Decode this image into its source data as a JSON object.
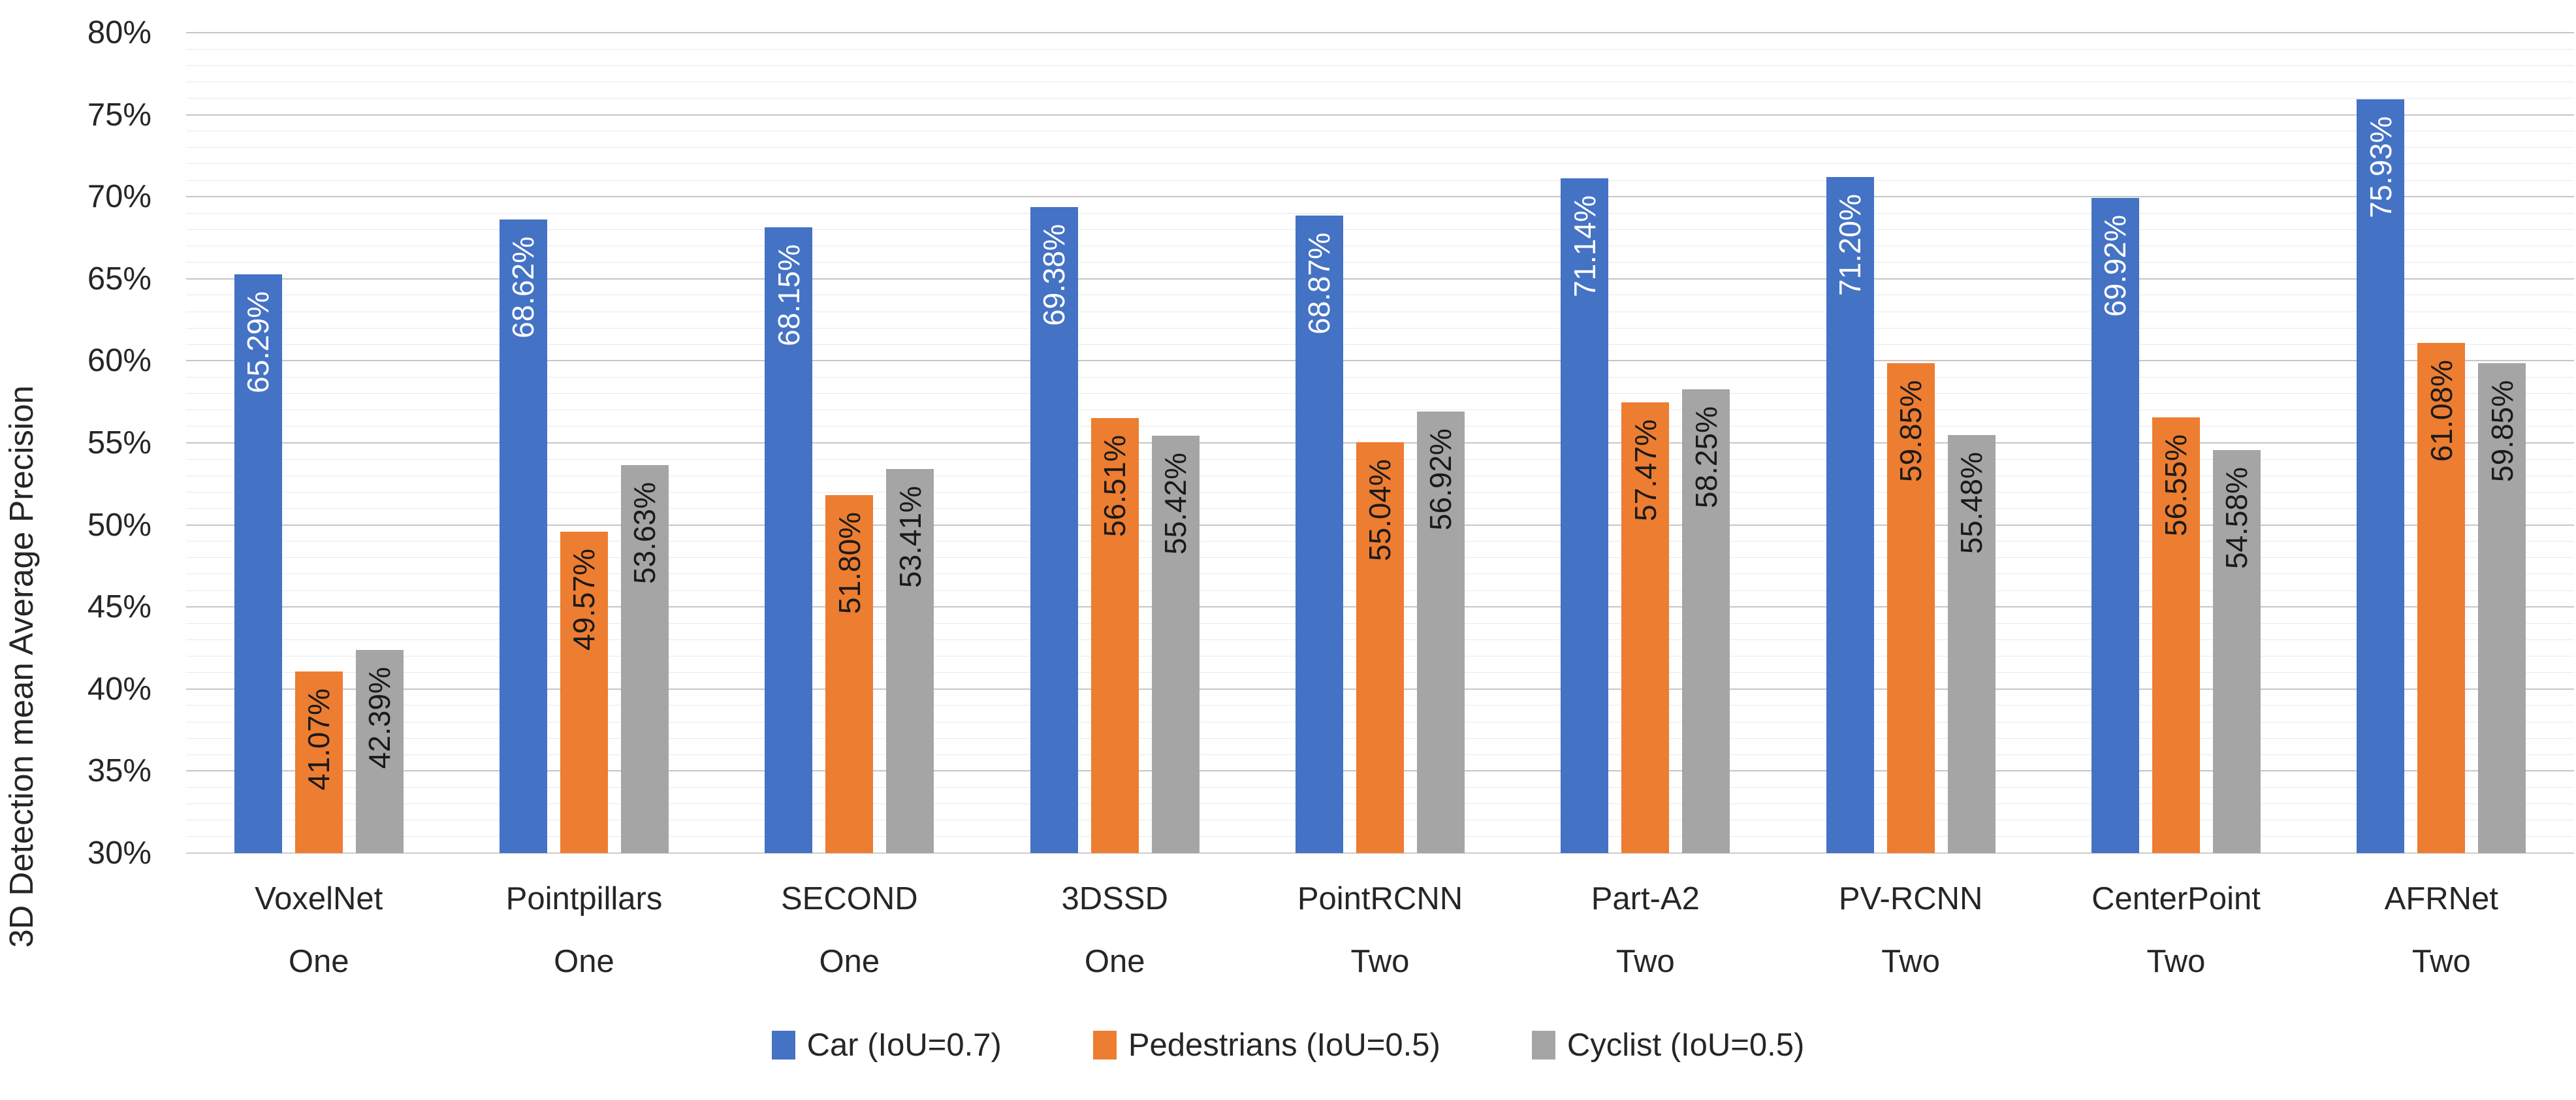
{
  "page": {
    "background": "#FFFFFF"
  },
  "chart_data": {
    "type": "bar",
    "title": "",
    "ylabel": "3D Detection mean Average Precision",
    "xlabel": "",
    "grid": true,
    "legend_position": "bottom",
    "y_axis": {
      "min": 30,
      "max": 80,
      "major_step": 5,
      "minor_step": 1,
      "suffix": "%"
    },
    "y_tick_labels": [
      "80%",
      "75%",
      "70%",
      "65%",
      "60%",
      "55%",
      "50%",
      "45%",
      "40%",
      "35%",
      "30%"
    ],
    "categories": [
      {
        "line1": "VoxelNet",
        "line2": "One"
      },
      {
        "line1": "Pointpillars",
        "line2": "One"
      },
      {
        "line1": "SECOND",
        "line2": "One"
      },
      {
        "line1": "3DSSD",
        "line2": "One"
      },
      {
        "line1": "PointRCNN",
        "line2": "Two"
      },
      {
        "line1": "Part-A2",
        "line2": "Two"
      },
      {
        "line1": "PV-RCNN",
        "line2": "Two"
      },
      {
        "line1": "CenterPoint",
        "line2": "Two"
      },
      {
        "line1": "AFRNet",
        "line2": "Two"
      }
    ],
    "series": [
      {
        "name": "Car (IoU=0.7)",
        "color": "#4472C4",
        "label_color": "#FFFFFF",
        "values": [
          65.29,
          68.62,
          68.15,
          69.38,
          68.87,
          71.14,
          71.2,
          69.92,
          75.93
        ],
        "labels": [
          "65.29%",
          "68.62%",
          "68.15%",
          "69.38%",
          "68.87%",
          "71.14%",
          "71.20%",
          "69.92%",
          "75.93%"
        ]
      },
      {
        "name": "Pedestrians (IoU=0.5)",
        "color": "#ED7D31",
        "label_color": "#1A1A1A",
        "values": [
          41.07,
          49.57,
          51.8,
          56.51,
          55.04,
          57.47,
          59.85,
          56.55,
          61.08
        ],
        "labels": [
          "41.07%",
          "49.57%",
          "51.80%",
          "56.51%",
          "55.04%",
          "57.47%",
          "59.85%",
          "56.55%",
          "61.08%"
        ]
      },
      {
        "name": "Cyclist (IoU=0.5)",
        "color": "#A5A5A5",
        "label_color": "#1A1A1A",
        "values": [
          42.39,
          53.63,
          53.41,
          55.42,
          56.92,
          58.25,
          55.48,
          54.58,
          59.85
        ],
        "labels": [
          "42.39%",
          "53.63%",
          "53.41%",
          "55.42%",
          "56.92%",
          "58.25%",
          "55.48%",
          "54.58%",
          "59.85%"
        ]
      }
    ],
    "gridline_colors": {
      "major": "#C6C6C6",
      "minor": "#E9E9E9",
      "axis": "#CDCDCD"
    }
  }
}
